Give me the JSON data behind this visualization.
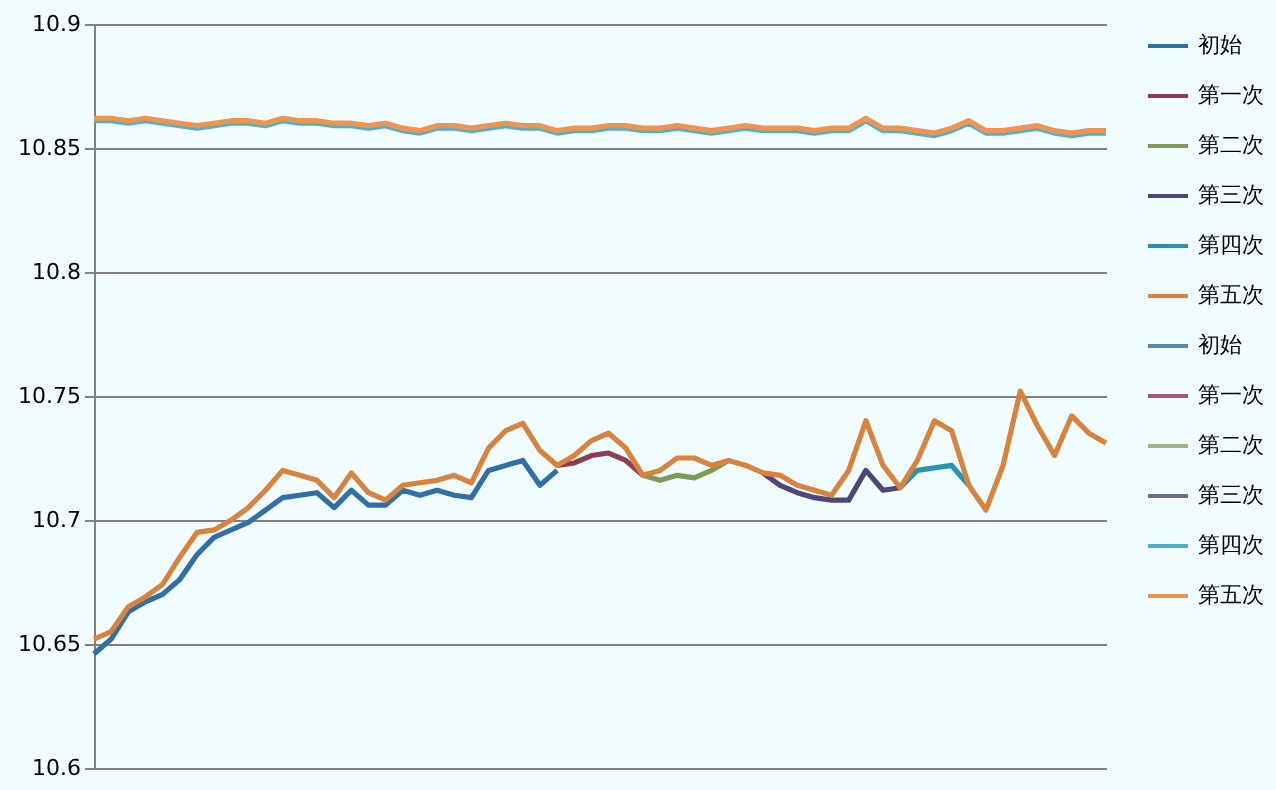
{
  "chart_data": {
    "type": "line",
    "categories": [
      null,
      null,
      null,
      null,
      null,
      null,
      null,
      null,
      null,
      null,
      null,
      null,
      null,
      null,
      null,
      null,
      null,
      null,
      null,
      null,
      null,
      null,
      null,
      null,
      null,
      null,
      null,
      null,
      null,
      null,
      null,
      null,
      null,
      null,
      null,
      null,
      null,
      null,
      null,
      null,
      null,
      null,
      null,
      null,
      null,
      null,
      null,
      null,
      null,
      null,
      null,
      null,
      null,
      null,
      null,
      null,
      null,
      null,
      null,
      null
    ],
    "ylim": [
      10.6,
      10.9
    ],
    "yticks": [
      10.6,
      10.65,
      10.7,
      10.75,
      10.8,
      10.85,
      10.9
    ],
    "grid": "y",
    "legend": "right",
    "tick_labels": "y",
    "marker": "none",
    "line_style": "solid",
    "series": [
      {
        "name": "初始",
        "color": "#2f6fa5",
        "values": [
          10.646,
          10.652,
          10.663,
          10.667,
          10.67,
          10.676,
          10.686,
          10.693,
          10.696,
          10.699,
          10.704,
          10.709,
          10.71,
          10.711,
          10.705,
          10.712,
          10.706,
          10.706,
          10.712,
          10.71,
          10.712,
          10.71,
          10.709,
          10.72,
          10.722,
          10.724,
          10.714,
          10.72,
          null,
          null,
          null,
          null,
          null,
          null,
          null,
          null,
          null,
          null,
          null,
          null,
          null,
          null,
          null,
          null,
          null,
          null,
          null,
          null,
          null,
          null,
          null,
          null,
          null,
          null,
          null,
          null,
          null,
          null,
          null,
          null
        ]
      },
      {
        "name": "第一次",
        "color": "#8e3b55",
        "values": [
          null,
          null,
          null,
          null,
          null,
          null,
          null,
          null,
          null,
          null,
          null,
          null,
          null,
          null,
          null,
          null,
          null,
          null,
          null,
          null,
          null,
          null,
          null,
          null,
          null,
          null,
          null,
          10.722,
          10.723,
          10.726,
          10.727,
          10.724,
          10.718,
          null,
          null,
          null,
          null,
          null,
          null,
          null,
          null,
          null,
          null,
          null,
          null,
          null,
          null,
          null,
          null,
          null,
          null,
          null,
          null,
          null,
          null,
          null,
          null,
          null,
          null,
          null
        ]
      },
      {
        "name": "第二次",
        "color": "#7f9a56",
        "values": [
          null,
          null,
          null,
          null,
          null,
          null,
          null,
          null,
          null,
          null,
          null,
          null,
          null,
          null,
          null,
          null,
          null,
          null,
          null,
          null,
          null,
          null,
          null,
          null,
          null,
          null,
          null,
          null,
          null,
          null,
          null,
          null,
          10.718,
          10.716,
          10.718,
          10.717,
          10.72,
          10.724,
          null,
          null,
          null,
          null,
          null,
          null,
          null,
          null,
          null,
          null,
          null,
          null,
          null,
          null,
          null,
          null,
          null,
          null,
          null,
          null,
          null,
          null
        ]
      },
      {
        "name": "第三次",
        "color": "#4f4778",
        "values": [
          null,
          null,
          null,
          null,
          null,
          null,
          null,
          null,
          null,
          null,
          null,
          null,
          null,
          null,
          null,
          null,
          null,
          null,
          null,
          null,
          null,
          null,
          null,
          null,
          null,
          null,
          null,
          null,
          null,
          null,
          null,
          null,
          null,
          null,
          null,
          null,
          null,
          null,
          null,
          10.719,
          10.714,
          10.711,
          10.709,
          10.708,
          10.708,
          10.72,
          10.712,
          10.713,
          null,
          null,
          null,
          null,
          null,
          null,
          null,
          null,
          null,
          null,
          null,
          null
        ]
      },
      {
        "name": "第四次",
        "color": "#2b93ad",
        "values": [
          null,
          null,
          null,
          null,
          null,
          null,
          null,
          null,
          null,
          null,
          null,
          null,
          null,
          null,
          null,
          null,
          null,
          null,
          null,
          null,
          null,
          null,
          null,
          null,
          null,
          null,
          null,
          null,
          null,
          null,
          null,
          null,
          null,
          null,
          null,
          null,
          null,
          null,
          null,
          null,
          null,
          null,
          null,
          null,
          null,
          null,
          null,
          10.713,
          10.72,
          10.721,
          10.722,
          10.714,
          null,
          null,
          null,
          null,
          null,
          null,
          null,
          null
        ]
      },
      {
        "name": "第五次",
        "color": "#d9823e",
        "values": [
          10.652,
          10.655,
          10.665,
          10.669,
          10.674,
          10.685,
          10.695,
          10.696,
          10.7,
          10.705,
          10.712,
          10.72,
          10.718,
          10.716,
          10.709,
          10.719,
          10.711,
          10.708,
          10.714,
          10.715,
          10.716,
          10.718,
          10.715,
          10.729,
          10.736,
          10.739,
          10.728,
          10.722,
          10.726,
          10.732,
          10.735,
          10.729,
          10.718,
          10.72,
          10.725,
          10.725,
          10.722,
          10.724,
          10.722,
          10.719,
          10.718,
          10.714,
          10.712,
          10.71,
          10.72,
          10.74,
          10.722,
          10.713,
          10.724,
          10.74,
          10.736,
          10.714,
          10.704,
          10.722,
          10.752,
          10.738,
          10.726,
          10.742,
          10.735,
          10.731
        ]
      },
      {
        "name": "初始",
        "color": "#5a86b0",
        "values": [
          null,
          null,
          null,
          null,
          null,
          null,
          null,
          null,
          null,
          null,
          null,
          null,
          null,
          null,
          null,
          null,
          null,
          null,
          null,
          null,
          null,
          null,
          null,
          null,
          null,
          null,
          null,
          null,
          null,
          null,
          null,
          null,
          null,
          null,
          null,
          null,
          null,
          null,
          null,
          null,
          null,
          null,
          null,
          null,
          null,
          null,
          null,
          null,
          null,
          null,
          null,
          null,
          null,
          null,
          null,
          null,
          null,
          null,
          null,
          null
        ]
      },
      {
        "name": "第一次",
        "color": "#a35a72",
        "values": [
          null,
          null,
          null,
          null,
          null,
          null,
          null,
          null,
          null,
          null,
          null,
          null,
          null,
          null,
          null,
          null,
          null,
          null,
          null,
          null,
          null,
          null,
          null,
          null,
          null,
          null,
          null,
          null,
          null,
          null,
          null,
          null,
          null,
          null,
          null,
          null,
          null,
          null,
          null,
          null,
          null,
          null,
          null,
          null,
          null,
          null,
          null,
          null,
          null,
          null,
          null,
          null,
          null,
          null,
          null,
          null,
          null,
          null,
          null,
          null
        ]
      },
      {
        "name": "第二次",
        "color": "#9fb27f",
        "values": [
          null,
          null,
          null,
          null,
          null,
          null,
          null,
          null,
          null,
          null,
          null,
          null,
          null,
          null,
          null,
          null,
          null,
          null,
          null,
          null,
          null,
          null,
          null,
          null,
          null,
          null,
          null,
          null,
          null,
          null,
          null,
          null,
          null,
          null,
          null,
          null,
          null,
          null,
          null,
          null,
          null,
          null,
          null,
          null,
          null,
          null,
          null,
          null,
          null,
          null,
          null,
          null,
          null,
          null,
          null,
          null,
          null,
          null,
          null,
          null
        ]
      },
      {
        "name": "第三次",
        "color": "#6f6894",
        "values": [
          null,
          null,
          null,
          null,
          null,
          null,
          null,
          null,
          null,
          null,
          null,
          null,
          null,
          null,
          null,
          null,
          null,
          null,
          null,
          null,
          null,
          null,
          null,
          null,
          null,
          null,
          null,
          null,
          null,
          null,
          null,
          null,
          null,
          null,
          null,
          null,
          null,
          null,
          null,
          null,
          null,
          null,
          null,
          null,
          null,
          null,
          null,
          null,
          null,
          null,
          null,
          null,
          null,
          null,
          null,
          null,
          null,
          null,
          null,
          null
        ]
      },
      {
        "name": "第四次",
        "color": "#4fb0c8",
        "values": [
          10.861,
          10.861,
          10.86,
          10.861,
          10.86,
          10.859,
          10.858,
          10.859,
          10.86,
          10.86,
          10.859,
          10.861,
          10.86,
          10.86,
          10.859,
          10.859,
          10.858,
          10.859,
          10.857,
          10.856,
          10.858,
          10.858,
          10.857,
          10.858,
          10.859,
          10.858,
          10.858,
          10.856,
          10.857,
          10.857,
          10.858,
          10.858,
          10.857,
          10.857,
          10.858,
          10.857,
          10.856,
          10.857,
          10.858,
          10.857,
          10.857,
          10.857,
          10.856,
          10.857,
          10.857,
          10.861,
          10.857,
          10.857,
          10.856,
          10.855,
          10.857,
          10.86,
          10.856,
          10.856,
          10.857,
          10.858,
          10.856,
          10.855,
          10.856,
          10.856
        ]
      },
      {
        "name": "第五次",
        "color": "#ef9450",
        "values": [
          10.862,
          10.862,
          10.861,
          10.862,
          10.861,
          10.86,
          10.859,
          10.86,
          10.861,
          10.861,
          10.86,
          10.862,
          10.861,
          10.861,
          10.86,
          10.86,
          10.859,
          10.86,
          10.858,
          10.857,
          10.859,
          10.859,
          10.858,
          10.859,
          10.86,
          10.859,
          10.859,
          10.857,
          10.858,
          10.858,
          10.859,
          10.859,
          10.858,
          10.858,
          10.859,
          10.858,
          10.857,
          10.858,
          10.859,
          10.858,
          10.858,
          10.858,
          10.857,
          10.858,
          10.858,
          10.862,
          10.858,
          10.858,
          10.857,
          10.856,
          10.858,
          10.861,
          10.857,
          10.857,
          10.858,
          10.859,
          10.857,
          10.856,
          10.857,
          10.857
        ]
      }
    ]
  }
}
